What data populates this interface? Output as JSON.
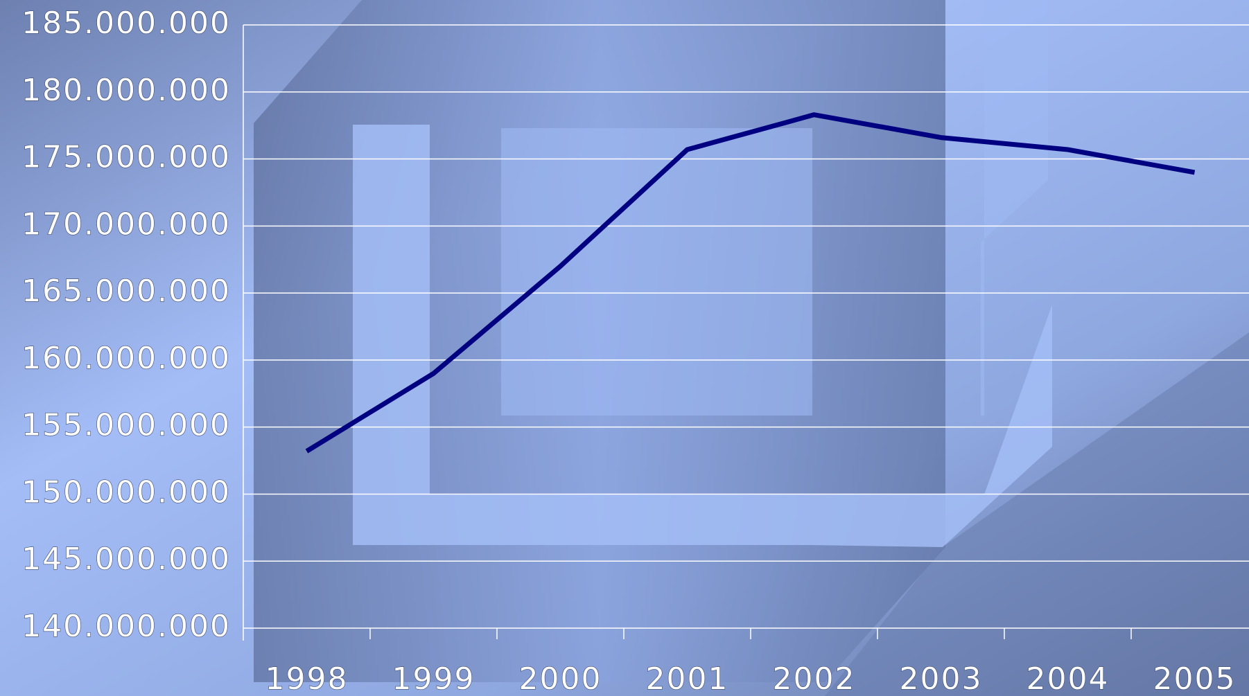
{
  "chart_data": {
    "type": "line",
    "categories": [
      "1998",
      "1999",
      "2000",
      "2001",
      "2002",
      "2003",
      "2004",
      "2005"
    ],
    "series": [
      {
        "color": "#000080",
        "values": [
          153200000,
          159000000,
          167000000,
          175700000,
          178300000,
          176600000,
          175700000,
          174000000
        ]
      }
    ],
    "ylim": [
      140000000,
      185000000
    ],
    "yticks": [
      {
        "value": 140000000,
        "label": "140.000.000"
      },
      {
        "value": 145000000,
        "label": "145.000.000"
      },
      {
        "value": 150000000,
        "label": "150.000.000"
      },
      {
        "value": 155000000,
        "label": "155.000.000"
      },
      {
        "value": 160000000,
        "label": "160.000.000"
      },
      {
        "value": 165000000,
        "label": "165.000.000"
      },
      {
        "value": 170000000,
        "label": "170.000.000"
      },
      {
        "value": 175000000,
        "label": "175.000.000"
      },
      {
        "value": 180000000,
        "label": "180.000.000"
      },
      {
        "value": 185000000,
        "label": "185.000.000"
      }
    ],
    "grid": true
  }
}
